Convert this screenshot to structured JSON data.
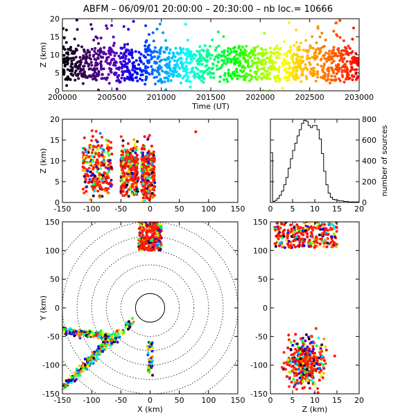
{
  "title": "ABFM – 06/09/01 20:00:00 – 20:30:00 – nb loc.=   10666",
  "colors": {
    "rainbow": [
      "#000000",
      "#3c0060",
      "#5a00b4",
      "#0000ff",
      "#0096ff",
      "#00ffff",
      "#00ff78",
      "#00ff00",
      "#96ff00",
      "#ffff00",
      "#ffaa00",
      "#ff5a00",
      "#ff0000"
    ],
    "axis": "#000000",
    "late": "#ff0000"
  },
  "chart_data": [
    {
      "id": "time-height",
      "type": "scatter",
      "xlabel": "Time (UT)",
      "ylabel": "Z (km)",
      "xlim": [
        200000,
        203000
      ],
      "ylim": [
        0,
        20
      ],
      "xticks": [
        "200000",
        "200500",
        "201000",
        "201500",
        "202000",
        "202500",
        "203000"
      ],
      "yticks": [
        "0",
        "5",
        "10",
        "15",
        "20"
      ],
      "description_values": {
        "dense_band_z": [
          3,
          12
        ],
        "color_by": "time"
      }
    },
    {
      "id": "x-height",
      "type": "scatter",
      "xlabel": "",
      "ylabel": "Z (km)",
      "xlim": [
        -150,
        150
      ],
      "ylim": [
        0,
        20
      ],
      "xticks": [
        "-150",
        "-100",
        "-50",
        "0",
        "50",
        "100",
        "150"
      ],
      "yticks": [
        "0",
        "5",
        "10",
        "15",
        "20"
      ],
      "clusters": [
        {
          "x": [
            -115,
            -65
          ],
          "z": [
            0,
            20
          ]
        },
        {
          "x": [
            -50,
            -20
          ],
          "z": [
            1,
            16
          ]
        },
        {
          "x": [
            -15,
            8
          ],
          "z": [
            0,
            17
          ]
        }
      ]
    },
    {
      "id": "altitude-histogram",
      "type": "line",
      "xlabel": "",
      "ylabel": "number of sources",
      "xlim": [
        0,
        20
      ],
      "ylim": [
        0,
        800
      ],
      "xticks": [
        "0",
        "5",
        "10",
        "15",
        "20"
      ],
      "yticks": [
        "0",
        "200",
        "400",
        "600",
        "800"
      ],
      "x": [
        0,
        0.5,
        1,
        1.5,
        2,
        2.5,
        3,
        3.5,
        4,
        4.5,
        5,
        5.5,
        6,
        6.5,
        7,
        7.5,
        8,
        8.5,
        9,
        9.5,
        10,
        10.5,
        11,
        11.5,
        12,
        12.5,
        13,
        13.5,
        14,
        14.5,
        15,
        15.5,
        16,
        16.5,
        17,
        17.5,
        18,
        18.5,
        19,
        19.5
      ],
      "values": [
        480,
        10,
        20,
        40,
        70,
        110,
        170,
        240,
        330,
        420,
        500,
        570,
        640,
        700,
        760,
        790,
        780,
        740,
        720,
        740,
        740,
        700,
        610,
        470,
        300,
        170,
        90,
        50,
        30,
        25,
        20,
        15,
        15,
        10,
        10,
        5,
        5,
        5,
        5,
        5
      ]
    },
    {
      "id": "plan-view",
      "type": "scatter",
      "xlabel": "X (km)",
      "ylabel": "Y (km)",
      "xlim": [
        -150,
        150
      ],
      "ylim": [
        -150,
        150
      ],
      "xticks": [
        "-150",
        "-100",
        "-50",
        "0",
        "50",
        "100",
        "150"
      ],
      "yticks": [
        "-150",
        "-100",
        "-50",
        "0",
        "50",
        "100",
        "150"
      ],
      "range_rings_km": [
        25,
        50,
        75,
        100,
        125,
        150,
        175
      ]
    },
    {
      "id": "z-y",
      "type": "scatter",
      "xlabel": "Z (km)",
      "ylabel": "",
      "xlim": [
        0,
        20
      ],
      "ylim": [
        -150,
        150
      ],
      "xticks": [
        "0",
        "5",
        "10",
        "15",
        "20"
      ],
      "yticks": [
        "-150",
        "-100",
        "-50",
        "0",
        "50",
        "100",
        "150"
      ]
    }
  ]
}
